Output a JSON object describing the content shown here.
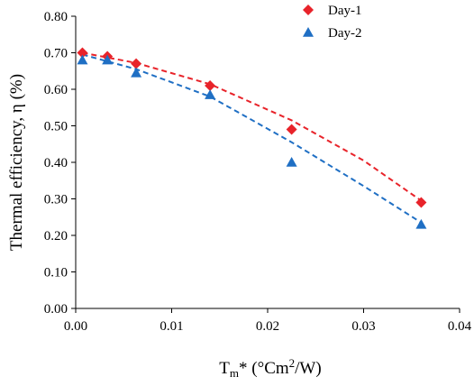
{
  "chart_data": {
    "type": "scatter",
    "title": "",
    "xlabel": "T",
    "xlabel_sub": "m",
    "xlabel_rest": "* (°Cm",
    "xlabel_sup": "2",
    "xlabel_end": "/W)",
    "ylabel": "Thermal efficiency, η (%)",
    "xlim": [
      0.0,
      0.04
    ],
    "ylim": [
      0.0,
      0.8
    ],
    "x_ticks": [
      "0.00",
      "0.01",
      "0.02",
      "0.03",
      "0.04"
    ],
    "y_ticks": [
      "0.00",
      "0.10",
      "0.20",
      "0.30",
      "0.40",
      "0.50",
      "0.60",
      "0.70",
      "0.80"
    ],
    "grid": false,
    "legend_position": "top-right",
    "series": [
      {
        "name": "Day-1",
        "marker": "diamond",
        "color": "#e8232a",
        "trend_color": "#e8232a",
        "x": [
          0.0007,
          0.0033,
          0.0063,
          0.014,
          0.0225,
          0.036
        ],
        "y": [
          0.7,
          0.69,
          0.67,
          0.61,
          0.49,
          0.29
        ],
        "trend_x": [
          0.0007,
          0.0063,
          0.014,
          0.0225,
          0.03,
          0.036
        ],
        "trend_y": [
          0.7,
          0.672,
          0.614,
          0.515,
          0.405,
          0.295
        ]
      },
      {
        "name": "Day-2",
        "marker": "triangle",
        "color": "#1f6fc4",
        "trend_color": "#1f6fc4",
        "x": [
          0.0007,
          0.0033,
          0.0063,
          0.014,
          0.0225,
          0.036
        ],
        "y": [
          0.68,
          0.68,
          0.645,
          0.585,
          0.4,
          0.23
        ],
        "trend_x": [
          0.0007,
          0.0063,
          0.014,
          0.0225,
          0.03,
          0.036
        ],
        "trend_y": [
          0.695,
          0.655,
          0.58,
          0.455,
          0.335,
          0.235
        ]
      }
    ]
  }
}
